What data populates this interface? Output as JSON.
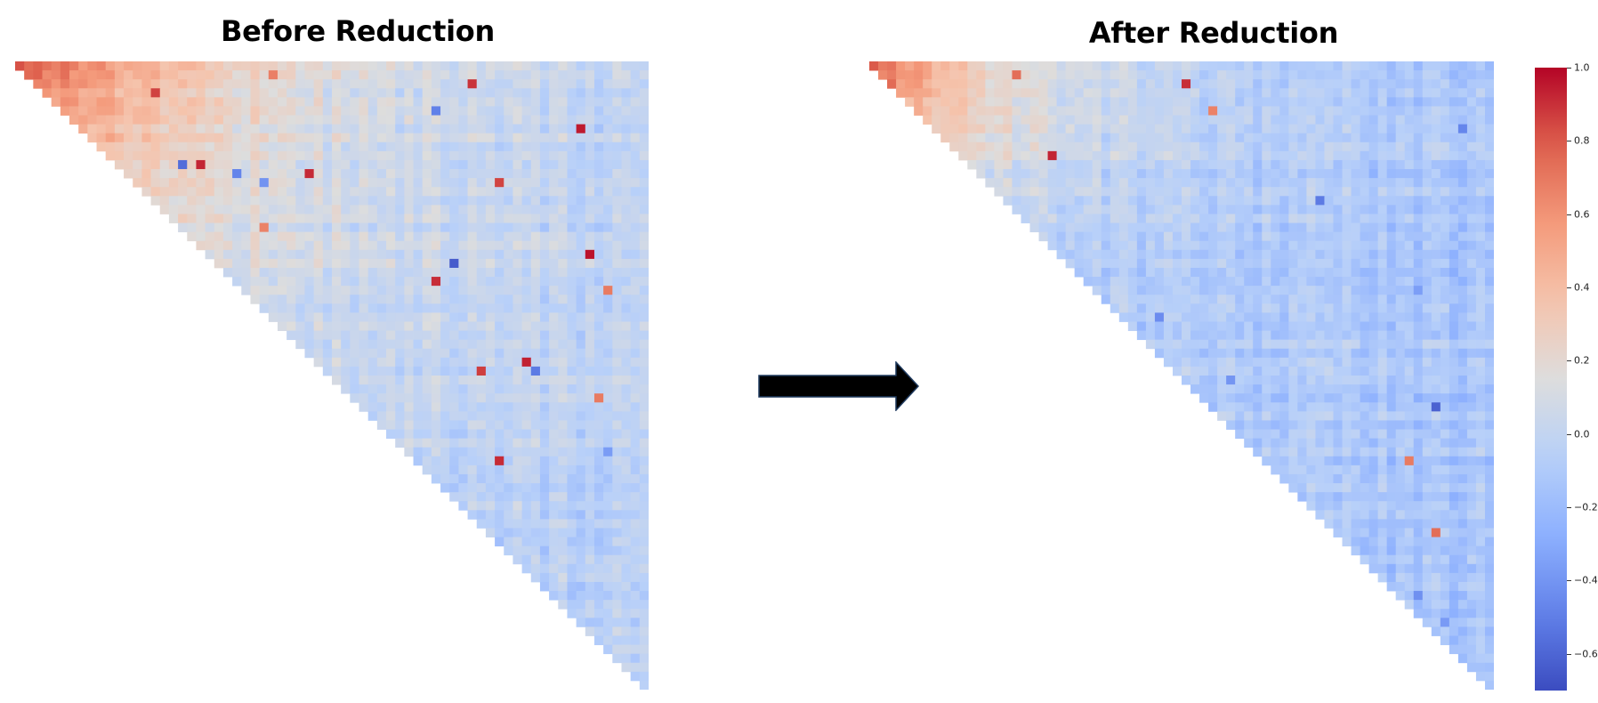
{
  "chart_data": [
    {
      "type": "heatmap",
      "title": "Before Reduction",
      "shape": "lower-triangle-masked correlation matrix",
      "n_cells_per_side": 70,
      "colormap": "coolwarm",
      "value_range": [
        -0.7,
        1.0
      ],
      "pattern": "strong positive correlations (0.4–0.8) concentrated in top-left, near zero elsewhere, scattered outliers up to 1.0 and down to -0.6",
      "xlabel": "",
      "ylabel": "",
      "grid": false,
      "legend": "none"
    },
    {
      "type": "heatmap",
      "title": "After Reduction",
      "shape": "lower-triangle-masked correlation matrix",
      "n_cells_per_side": 70,
      "colormap": "coolwarm",
      "value_range": [
        -0.7,
        1.0
      ],
      "pattern": "positive correlations confined to a smaller top-left region, most cells slightly negative (~-0.1), few outliers",
      "xlabel": "",
      "ylabel": "",
      "grid": false,
      "legend": "none"
    }
  ],
  "colorbar": {
    "min": -0.7,
    "max": 1.0,
    "ticks": [
      "1.0",
      "0.8",
      "0.6",
      "0.4",
      "0.2",
      "0.0",
      "−0.2",
      "−0.4",
      "−0.6"
    ],
    "tick_values": [
      1.0,
      0.8,
      0.6,
      0.4,
      0.2,
      0.0,
      -0.2,
      -0.4,
      -0.6
    ],
    "placement": "right"
  },
  "arrow": {
    "direction": "right",
    "color": "#000000"
  }
}
